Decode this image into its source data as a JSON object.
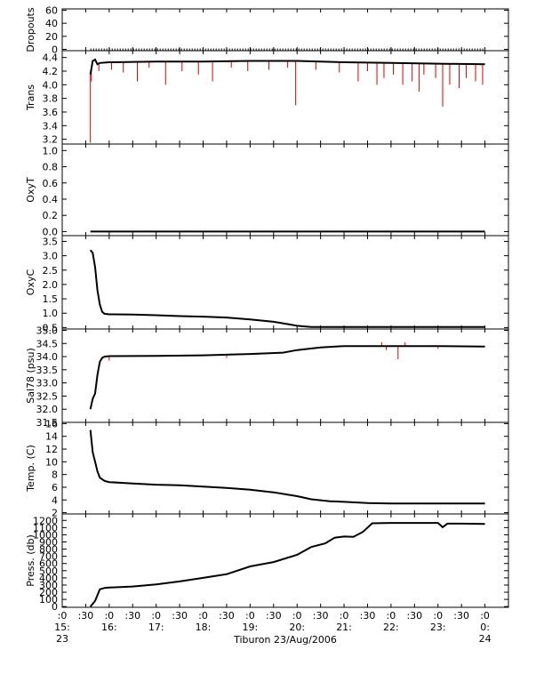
{
  "caption": "Tiburon 23/Aug/2006",
  "chart_data": [
    {
      "type": "line",
      "ylabel": "Dropouts",
      "ylim": [
        -2,
        62
      ],
      "yticks": [
        0,
        20,
        40,
        60
      ],
      "yticklabels": [
        "0",
        "20",
        "40",
        "60"
      ],
      "series": [
        {
          "color": "#000000",
          "style": "dotted",
          "x": [
            15.6,
            24
          ],
          "y": [
            0,
            0
          ]
        }
      ]
    },
    {
      "type": "line",
      "ylabel": "Trans",
      "ylim": [
        3.13,
        4.5
      ],
      "yticks": [
        3.2,
        3.4,
        3.6,
        3.8,
        4.0,
        4.2,
        4.4
      ],
      "yticklabels": [
        "3.2",
        "3.4",
        "3.6",
        "3.8",
        "4.0",
        "4.2",
        "4.4"
      ],
      "series": [
        {
          "color": "#000000",
          "x": [
            15.6,
            15.65,
            15.7,
            15.75,
            15.8,
            16,
            17,
            18,
            19,
            20,
            21,
            22,
            23,
            24
          ],
          "y": [
            4.15,
            4.35,
            4.37,
            4.3,
            4.32,
            4.33,
            4.34,
            4.34,
            4.35,
            4.35,
            4.33,
            4.32,
            4.31,
            4.3
          ]
        }
      ],
      "spikes": {
        "color": "#e00000",
        "x": [
          15.6,
          15.62,
          15.78,
          16.05,
          16.3,
          16.6,
          16.85,
          17.2,
          17.55,
          17.9,
          18.2,
          18.6,
          18.95,
          19.4,
          19.8,
          19.97,
          20.4,
          20.9,
          21.3,
          21.5,
          21.7,
          21.85,
          22.05,
          22.25,
          22.45,
          22.6,
          22.7,
          22.95,
          23.1,
          23.25,
          23.45,
          23.6,
          23.8,
          23.95
        ],
        "y": [
          3.15,
          4.05,
          4.2,
          4.22,
          4.18,
          4.05,
          4.25,
          4.0,
          4.2,
          4.15,
          4.05,
          4.25,
          4.2,
          4.22,
          4.25,
          3.7,
          4.22,
          4.18,
          4.05,
          4.2,
          4.0,
          4.1,
          4.15,
          4.0,
          4.05,
          3.9,
          4.15,
          4.1,
          3.68,
          4.0,
          3.95,
          4.1,
          4.05,
          4.0
        ]
      }
    },
    {
      "type": "line",
      "ylabel": "OxyT",
      "ylim": [
        -0.05,
        1.08
      ],
      "yticks": [
        0.0,
        0.2,
        0.4,
        0.6,
        0.8,
        1.0
      ],
      "yticklabels": [
        "0.0",
        "0.2",
        "0.4",
        "0.6",
        "0.8",
        "1.0"
      ],
      "series": [
        {
          "color": "#000000",
          "x": [
            15.6,
            24
          ],
          "y": [
            0,
            0
          ]
        }
      ]
    },
    {
      "type": "line",
      "ylabel": "OxyC",
      "ylim": [
        0.45,
        3.7
      ],
      "yticks": [
        0.5,
        1.0,
        1.5,
        2.0,
        2.5,
        3.0,
        3.5
      ],
      "yticklabels": [
        "0.5",
        "1.0",
        "1.5",
        "2.0",
        "2.5",
        "3.0",
        "3.5"
      ],
      "series": [
        {
          "color": "#000000",
          "x": [
            15.6,
            15.65,
            15.7,
            15.75,
            15.8,
            15.85,
            15.9,
            16,
            16.5,
            17,
            17.5,
            18,
            18.5,
            19,
            19.5,
            19.8,
            20,
            20.3,
            21,
            22,
            23,
            24
          ],
          "y": [
            3.2,
            3.1,
            2.6,
            1.8,
            1.3,
            1.05,
            0.98,
            0.96,
            0.95,
            0.93,
            0.9,
            0.88,
            0.85,
            0.78,
            0.7,
            0.62,
            0.56,
            0.52,
            0.52,
            0.52,
            0.52,
            0.52
          ]
        }
      ]
    },
    {
      "type": "line",
      "ylabel": "Sal78 (psu)",
      "ylim": [
        31.5,
        35.05
      ],
      "yticks": [
        31.5,
        32.0,
        32.5,
        33.0,
        33.5,
        34.0,
        34.5,
        35.0
      ],
      "yticklabels": [
        "31.5",
        "32.0",
        "32.5",
        "33.0",
        "33.5",
        "34.0",
        "34.5",
        "35.0"
      ],
      "series": [
        {
          "color": "#000000",
          "x": [
            15.6,
            15.65,
            15.7,
            15.75,
            15.8,
            15.85,
            15.9,
            16,
            17,
            18,
            19,
            19.7,
            20,
            20.5,
            21,
            22,
            23,
            24
          ],
          "y": [
            32.0,
            32.4,
            32.6,
            33.3,
            33.8,
            33.95,
            34.0,
            34.02,
            34.03,
            34.05,
            34.1,
            34.15,
            34.25,
            34.35,
            34.4,
            34.4,
            34.4,
            34.38
          ]
        }
      ],
      "spikes": {
        "color": "#e00000",
        "x": [
          16.0,
          18.5,
          19.2,
          20.1,
          21.8,
          21.9,
          22.15,
          22.3,
          23.0
        ],
        "y": [
          33.85,
          33.95,
          34.15,
          34.25,
          34.55,
          34.25,
          33.9,
          34.55,
          34.3
        ]
      }
    },
    {
      "type": "line",
      "ylabel": "Temp. (C)",
      "ylim": [
        1.8,
        16.2
      ],
      "yticks": [
        2,
        4,
        6,
        8,
        10,
        12,
        14,
        16
      ],
      "yticklabels": [
        "2",
        "4",
        "6",
        "8",
        "10",
        "12",
        "14",
        "16"
      ],
      "series": [
        {
          "color": "#000000",
          "x": [
            15.6,
            15.65,
            15.7,
            15.75,
            15.8,
            15.9,
            16,
            16.5,
            17,
            17.5,
            18,
            18.5,
            19,
            19.5,
            20,
            20.3,
            20.7,
            21,
            21.5,
            22,
            23,
            24
          ],
          "y": [
            15.0,
            11.5,
            10.0,
            8.5,
            7.5,
            7.0,
            6.8,
            6.6,
            6.4,
            6.3,
            6.1,
            5.9,
            5.6,
            5.2,
            4.6,
            4.1,
            3.8,
            3.7,
            3.5,
            3.45,
            3.45,
            3.45
          ]
        }
      ]
    },
    {
      "type": "line",
      "ylabel": "Press. (db)",
      "ylim": [
        -10,
        1290
      ],
      "yticks": [
        0,
        100,
        200,
        300,
        400,
        500,
        600,
        700,
        800,
        900,
        1000,
        1100,
        1200
      ],
      "yticklabels": [
        "0",
        "100",
        "200",
        "300",
        "400",
        "500",
        "600",
        "700",
        "800",
        "900",
        "1000",
        "1100",
        "1200"
      ],
      "series": [
        {
          "color": "#000000",
          "x": [
            15.6,
            15.7,
            15.8,
            15.9,
            16,
            16.5,
            17,
            17.5,
            18,
            18.5,
            19,
            19.5,
            20,
            20.3,
            20.6,
            20.8,
            21,
            21.2,
            21.4,
            21.6,
            22,
            22.5,
            23,
            23.1,
            23.2,
            23.5,
            24
          ],
          "y": [
            0,
            80,
            240,
            260,
            265,
            280,
            310,
            350,
            400,
            450,
            560,
            620,
            720,
            830,
            880,
            960,
            975,
            970,
            1040,
            1160,
            1165,
            1165,
            1165,
            1105,
            1155,
            1155,
            1150
          ]
        }
      ]
    }
  ],
  "xaxis": {
    "xlim": [
      15,
      24.5
    ],
    "ticks": [
      {
        "x": 15.0,
        "lines": [
          ":0",
          "15:",
          "23"
        ]
      },
      {
        "x": 15.5,
        "lines": [
          ":30"
        ]
      },
      {
        "x": 16.0,
        "lines": [
          ":0",
          "16:"
        ]
      },
      {
        "x": 16.5,
        "lines": [
          ":30"
        ]
      },
      {
        "x": 17.0,
        "lines": [
          ":0",
          "17:"
        ]
      },
      {
        "x": 17.5,
        "lines": [
          ":30"
        ]
      },
      {
        "x": 18.0,
        "lines": [
          ":0",
          "18:"
        ]
      },
      {
        "x": 18.5,
        "lines": [
          ":30"
        ]
      },
      {
        "x": 19.0,
        "lines": [
          ":0",
          "19:"
        ]
      },
      {
        "x": 19.5,
        "lines": [
          ":30"
        ]
      },
      {
        "x": 20.0,
        "lines": [
          ":0",
          "20:"
        ]
      },
      {
        "x": 20.5,
        "lines": [
          ":30"
        ]
      },
      {
        "x": 21.0,
        "lines": [
          ":0",
          "21:"
        ]
      },
      {
        "x": 21.5,
        "lines": [
          ":30"
        ]
      },
      {
        "x": 22.0,
        "lines": [
          ":0",
          "22:"
        ]
      },
      {
        "x": 22.5,
        "lines": [
          ":30"
        ]
      },
      {
        "x": 23.0,
        "lines": [
          ":0",
          "23:"
        ]
      },
      {
        "x": 23.5,
        "lines": [
          ":30"
        ]
      },
      {
        "x": 24.0,
        "lines": [
          ":0",
          "0:",
          "24"
        ]
      }
    ]
  }
}
